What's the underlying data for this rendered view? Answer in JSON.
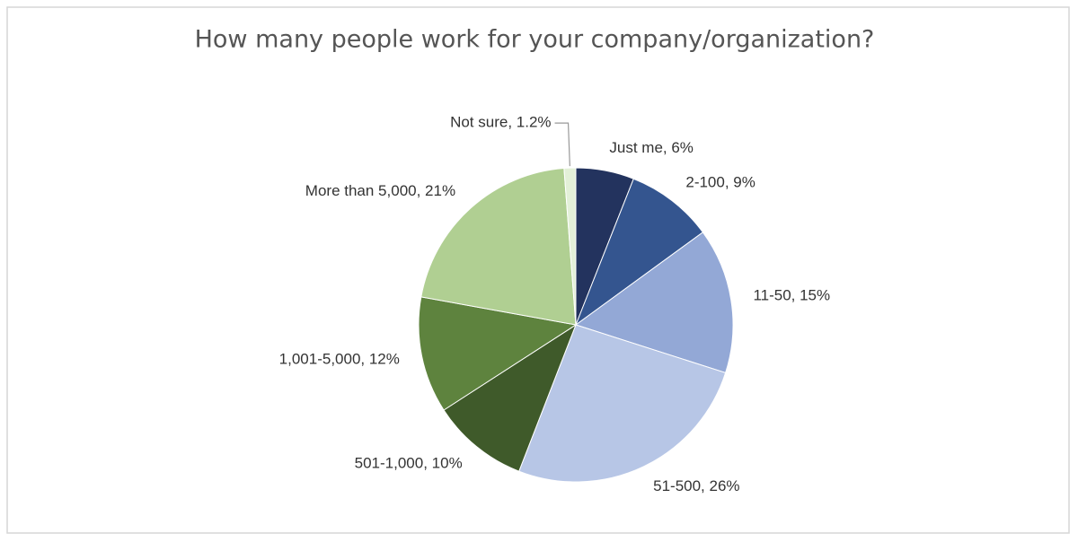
{
  "chart_data": {
    "type": "pie",
    "title": "How many people work for your company/organization?",
    "values": [
      6,
      9,
      15,
      26,
      10,
      12,
      21,
      1.2
    ],
    "value_labels": [
      "Just me, 6%",
      "2-100, 9%",
      "11-50, 15%",
      "51-500, 26%",
      "501-1,000, 10%",
      "1,001-5,000, 12%",
      "More than 5,000, 21%",
      "Not sure, 1.2%"
    ],
    "colors": [
      "#23335e",
      "#34558f",
      "#93a8d6",
      "#b7c6e6",
      "#3f5a2a",
      "#5e833e",
      "#b0cf92",
      "#e3f0d8"
    ]
  }
}
